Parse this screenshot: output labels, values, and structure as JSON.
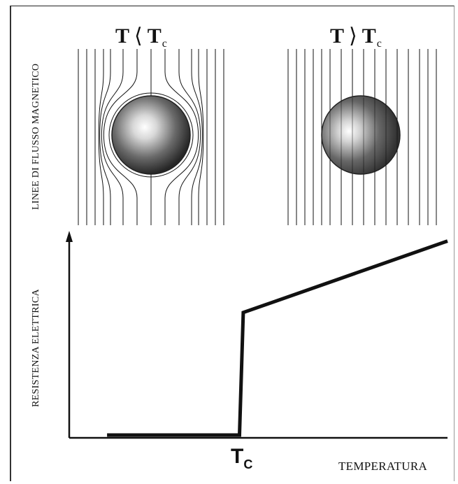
{
  "panels": {
    "left": {
      "symbol": "T",
      "relation": "⟨",
      "ref": "T",
      "ref_sub": "c"
    },
    "right": {
      "symbol": "T",
      "relation": "⟩",
      "ref": "T",
      "ref_sub": "c"
    }
  },
  "labels": {
    "flux_axis": "LINEE DI FLUSSO MAGNETICO",
    "resistance_axis": "RESISTENZA ELETTRICA",
    "tc_main": "T",
    "tc_sub": "C",
    "temperature_axis": "TEMPERATURA"
  },
  "colors": {
    "line": "#111111",
    "sphere_dark": "#2a2a2a",
    "sphere_light": "#f4f4f4"
  },
  "chart_data": {
    "type": "line",
    "xlabel": "TEMPERATURA",
    "ylabel": "RESISTENZA ELETTRICA",
    "x_tick_labels": [
      "Tc"
    ],
    "series": [
      {
        "values": [
          [
            0.1,
            0.0
          ],
          [
            0.45,
            0.0
          ],
          [
            0.46,
            0.6
          ],
          [
            1.0,
            0.95
          ]
        ]
      }
    ],
    "xlim": [
      0,
      1
    ],
    "ylim": [
      0,
      1
    ],
    "grid": false
  }
}
